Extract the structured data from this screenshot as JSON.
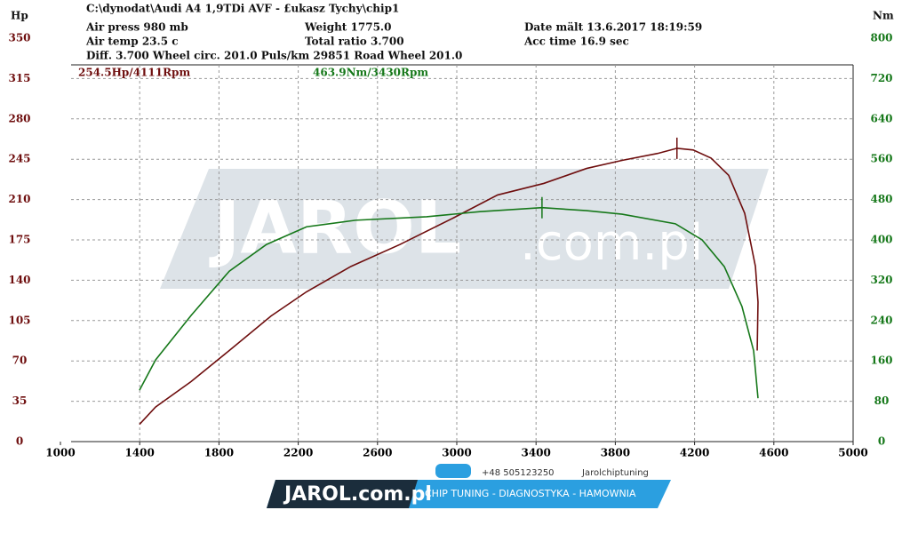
{
  "chart_data": {
    "type": "line",
    "header": [
      "C:\\dynodat\\Audi A4 1,9TDi AVF - £ukasz Tychy\\chip1",
      "Air press  980 mb",
      "Weight  1775.0",
      "Date mält 13.6.2017 18:19:59",
      "Air temp  23.5 c",
      "Total ratio 3.700",
      "Acc time  16.9 sec",
      "Diff.  3.700  Wheel circ. 201.0  Puls/km  29851  Road Wheel 201.0"
    ],
    "ylabel": "Hp",
    "y2label": "Nm",
    "peak_labels": [
      "254.5Hp/4111Rpm",
      "463.9Nm/3430Rpm"
    ],
    "xlim": [
      1000,
      5000
    ],
    "xticks": [
      1000,
      1400,
      1800,
      2200,
      2600,
      3000,
      3400,
      3800,
      4200,
      4600,
      5000
    ],
    "ylim": [
      0,
      350
    ],
    "yticks": [
      0,
      35,
      70,
      105,
      140,
      175,
      210,
      245,
      280,
      315,
      350
    ],
    "y2lim": [
      0,
      800
    ],
    "y2ticks": [
      0,
      80,
      160,
      240,
      320,
      400,
      480,
      560,
      640,
      720,
      800
    ],
    "grid": true,
    "series": [
      {
        "color": "#6e0e0e",
        "x": [
          1399,
          1480,
          1659,
          1852,
          2063,
          2242,
          2466,
          2713,
          2982,
          3206,
          3439,
          3655,
          3834,
          4013,
          4111,
          4193,
          4283,
          4372,
          4453,
          4507,
          4520,
          4516
        ],
        "values": [
          15,
          30,
          52,
          79,
          109,
          130,
          152,
          171,
          194,
          214,
          224,
          237,
          244,
          250,
          254.5,
          253,
          246,
          231,
          198,
          152,
          121,
          79
        ]
      },
      {
        "color": "#16781a",
        "axis": "y2",
        "x": [
          1399,
          1480,
          1659,
          1852,
          2040,
          2242,
          2489,
          2848,
          3117,
          3430,
          3655,
          3834,
          4103,
          4238,
          4350,
          4439,
          4498,
          4520
        ],
        "values": [
          102,
          162,
          250,
          338,
          391,
          426,
          439,
          446,
          456,
          463.9,
          458,
          451,
          432,
          400,
          347,
          268,
          180,
          86
        ]
      }
    ],
    "watermark": [
      "JAROL",
      ".com.pl"
    ],
    "footer": [
      "JAROL.com.pl",
      "+48 505123250",
      "Jarolchiptuning",
      "CHIP TUNING - DIAGNOSTYKA - HAMOWNIA"
    ]
  }
}
